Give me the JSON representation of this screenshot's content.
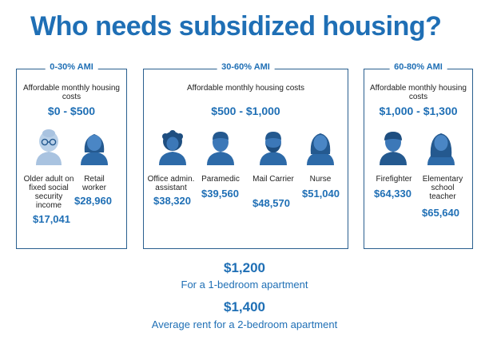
{
  "title": "Who needs subsidized housing?",
  "groups": [
    {
      "label": "0-30% AMI",
      "cost_label": "Affordable monthly housing costs",
      "cost_range": "$0 - $500",
      "people": [
        {
          "job": "Older adult on fixed social security income",
          "salary": "$17,041",
          "icon": "older-adult-icon"
        },
        {
          "job": "Retail worker",
          "salary": "$28,960",
          "icon": "retail-worker-icon"
        }
      ]
    },
    {
      "label": "30-60% AMI",
      "cost_label": "Affordable monthly housing costs",
      "cost_range": "$500 - $1,000",
      "people": [
        {
          "job": "Office admin. assistant",
          "salary": "$38,320",
          "icon": "office-assistant-icon"
        },
        {
          "job": "Paramedic",
          "salary": "$39,560",
          "icon": "paramedic-icon"
        },
        {
          "job": "Mail Carrier",
          "salary": "$48,570",
          "icon": "mail-carrier-icon"
        },
        {
          "job": "Nurse",
          "salary": "$51,040",
          "icon": "nurse-icon"
        }
      ]
    },
    {
      "label": "60-80% AMI",
      "cost_label": "Affordable monthly housing costs",
      "cost_range": "$1,000 - $1,300",
      "people": [
        {
          "job": "Firefighter",
          "salary": "$64,330",
          "icon": "firefighter-icon"
        },
        {
          "job": "Elementary school teacher",
          "salary": "$65,640",
          "icon": "teacher-icon"
        }
      ]
    }
  ],
  "rent": [
    {
      "value": "$1,200",
      "desc": "For a 1-bedroom apartment"
    },
    {
      "value": "$1,400",
      "desc": "Average rent for a 2-bedroom apartment"
    }
  ],
  "colors": {
    "accent": "#1f6fb5",
    "icon_dark": "#24598f",
    "icon_light": "#a9c3e0",
    "border": "#2a5f8f"
  }
}
